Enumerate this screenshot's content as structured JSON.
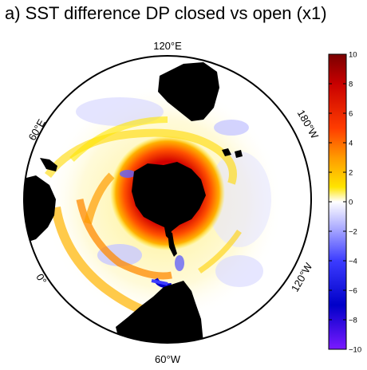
{
  "title": "a) SST difference DP closed vs open (x1)",
  "lon_labels": {
    "top": "120°E",
    "upper_left": "60°E",
    "upper_right": "180°W",
    "lower_left": "0°",
    "lower_right": "120°W",
    "bottom": "60°W"
  },
  "colorbar": {
    "ticks": [
      "10",
      "8",
      "6",
      "4",
      "2",
      "0",
      "−2",
      "−4",
      "−6",
      "−8",
      "−10"
    ],
    "min": -10,
    "max": 10,
    "colors": {
      "max": "#7a0000",
      "high": "#c80000",
      "warm": "#ff3c00",
      "mid_warm": "#ff9a00",
      "low_warm": "#ffe400",
      "zero": "#ffffff",
      "low_cool": "#b4b4ff",
      "mid_cool": "#3c3cff",
      "cool": "#0000c8",
      "min": "#7a1aff"
    }
  },
  "land_color": "#000000"
}
